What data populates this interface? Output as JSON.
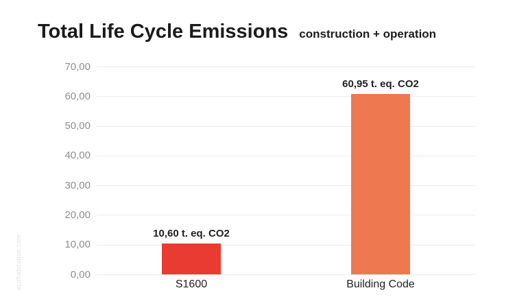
{
  "header": {
    "title": "Total Life Cycle Emissions",
    "subtitle": "construction + operation"
  },
  "watermark": "ecohabitation.com",
  "chart_data": {
    "type": "bar",
    "title": "Total Life Cycle Emissions",
    "subtitle": "construction + operation",
    "categories": [
      "S1600",
      "Building Code"
    ],
    "values": [
      10.6,
      60.95
    ],
    "value_labels": [
      "10,60 t. eq. CO2",
      "60,95 t. eq. CO2"
    ],
    "bar_colors": [
      "#e93b31",
      "#ee7850"
    ],
    "xlabel": "",
    "ylabel": "",
    "ylim": [
      0,
      70
    ],
    "ytick_step": 10,
    "ytick_labels": [
      "0,00",
      "10,00",
      "20,00",
      "30,00",
      "40,00",
      "50,00",
      "60,00",
      "70,00"
    ],
    "grid": true,
    "legend": false
  },
  "colors": {
    "background": "#ffffff",
    "grid": "#ececec",
    "axis_text": "#8f8f8f",
    "text": "#1b1b1b",
    "bar_s1600": "#e93b31",
    "bar_building_code": "#ee7850"
  }
}
